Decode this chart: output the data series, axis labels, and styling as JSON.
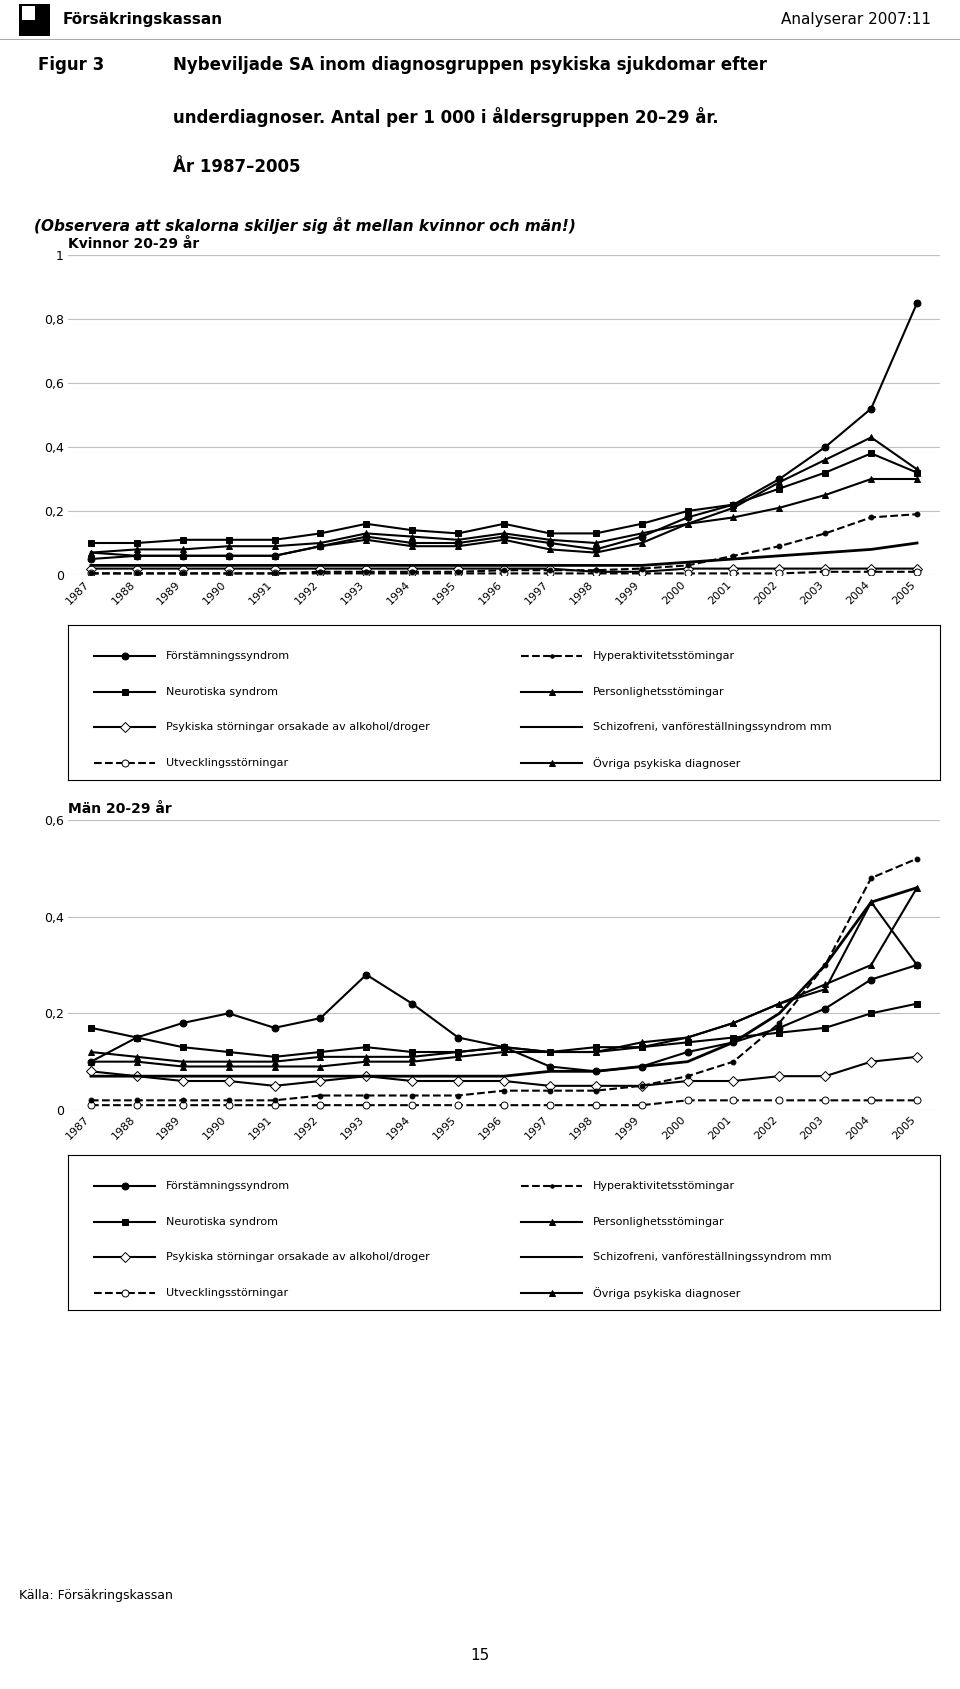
{
  "years": [
    1987,
    1988,
    1989,
    1990,
    1991,
    1992,
    1993,
    1994,
    1995,
    1996,
    1997,
    1998,
    1999,
    2000,
    2001,
    2002,
    2003,
    2004,
    2005
  ],
  "kvinnor": {
    "forstamningssyndrom": [
      0.05,
      0.06,
      0.06,
      0.06,
      0.06,
      0.09,
      0.12,
      0.1,
      0.1,
      0.12,
      0.1,
      0.08,
      0.12,
      0.18,
      0.22,
      0.3,
      0.4,
      0.52,
      0.85
    ],
    "neurotiska": [
      0.1,
      0.1,
      0.11,
      0.11,
      0.11,
      0.13,
      0.16,
      0.14,
      0.13,
      0.16,
      0.13,
      0.13,
      0.16,
      0.2,
      0.22,
      0.27,
      0.32,
      0.38,
      0.32
    ],
    "psykiska_alkohol": [
      0.02,
      0.02,
      0.02,
      0.02,
      0.02,
      0.02,
      0.02,
      0.02,
      0.02,
      0.02,
      0.02,
      0.01,
      0.01,
      0.02,
      0.02,
      0.02,
      0.02,
      0.02,
      0.02
    ],
    "utvecklingsstorningar": [
      0.005,
      0.005,
      0.005,
      0.005,
      0.005,
      0.005,
      0.005,
      0.005,
      0.005,
      0.005,
      0.005,
      0.005,
      0.005,
      0.005,
      0.005,
      0.005,
      0.01,
      0.01,
      0.01
    ],
    "hyperaktivitet": [
      0.005,
      0.005,
      0.005,
      0.005,
      0.005,
      0.01,
      0.01,
      0.01,
      0.01,
      0.015,
      0.015,
      0.015,
      0.02,
      0.03,
      0.06,
      0.09,
      0.13,
      0.18,
      0.19
    ],
    "personlighet": [
      0.07,
      0.08,
      0.08,
      0.09,
      0.09,
      0.1,
      0.13,
      0.12,
      0.11,
      0.13,
      0.11,
      0.1,
      0.13,
      0.16,
      0.18,
      0.21,
      0.25,
      0.3,
      0.3
    ],
    "schizofreni": [
      0.03,
      0.03,
      0.03,
      0.03,
      0.03,
      0.03,
      0.03,
      0.03,
      0.03,
      0.03,
      0.03,
      0.03,
      0.03,
      0.04,
      0.05,
      0.06,
      0.07,
      0.08,
      0.1
    ],
    "ovriga": [
      0.07,
      0.06,
      0.06,
      0.06,
      0.06,
      0.09,
      0.11,
      0.09,
      0.09,
      0.11,
      0.08,
      0.07,
      0.1,
      0.16,
      0.21,
      0.29,
      0.36,
      0.43,
      0.33
    ]
  },
  "man": {
    "forstamningssyndrom": [
      0.1,
      0.15,
      0.18,
      0.2,
      0.17,
      0.19,
      0.28,
      0.22,
      0.15,
      0.13,
      0.09,
      0.08,
      0.09,
      0.12,
      0.14,
      0.17,
      0.21,
      0.27,
      0.3
    ],
    "neurotiska": [
      0.17,
      0.15,
      0.13,
      0.12,
      0.11,
      0.12,
      0.13,
      0.12,
      0.12,
      0.13,
      0.12,
      0.13,
      0.13,
      0.14,
      0.15,
      0.16,
      0.17,
      0.2,
      0.22
    ],
    "psykiska_alkohol": [
      0.08,
      0.07,
      0.06,
      0.06,
      0.05,
      0.06,
      0.07,
      0.06,
      0.06,
      0.06,
      0.05,
      0.05,
      0.05,
      0.06,
      0.06,
      0.07,
      0.07,
      0.1,
      0.11
    ],
    "utvecklingsstorningar": [
      0.01,
      0.01,
      0.01,
      0.01,
      0.01,
      0.01,
      0.01,
      0.01,
      0.01,
      0.01,
      0.01,
      0.01,
      0.01,
      0.02,
      0.02,
      0.02,
      0.02,
      0.02,
      0.02
    ],
    "hyperaktivitet": [
      0.02,
      0.02,
      0.02,
      0.02,
      0.02,
      0.03,
      0.03,
      0.03,
      0.03,
      0.04,
      0.04,
      0.04,
      0.05,
      0.07,
      0.1,
      0.18,
      0.3,
      0.48,
      0.52
    ],
    "personlighet": [
      0.1,
      0.1,
      0.09,
      0.09,
      0.09,
      0.09,
      0.1,
      0.1,
      0.11,
      0.12,
      0.12,
      0.12,
      0.14,
      0.15,
      0.18,
      0.22,
      0.26,
      0.3,
      0.46
    ],
    "schizofreni": [
      0.07,
      0.07,
      0.07,
      0.07,
      0.07,
      0.07,
      0.07,
      0.07,
      0.07,
      0.07,
      0.08,
      0.08,
      0.09,
      0.1,
      0.14,
      0.2,
      0.3,
      0.43,
      0.46
    ],
    "ovriga": [
      0.12,
      0.11,
      0.1,
      0.1,
      0.1,
      0.11,
      0.11,
      0.11,
      0.12,
      0.13,
      0.12,
      0.12,
      0.13,
      0.15,
      0.18,
      0.22,
      0.25,
      0.43,
      0.3
    ]
  },
  "header_text": "Analyserar 2007:11",
  "logo_text": "Försäkringskassan",
  "title_label": "Figur 3",
  "title_text1": "Nybeviljade SA inom diagnosgruppen psykiska sjukdomar efter",
  "title_text2": "underdiagnoser. Antal per 1 000 i åldersgruppen 20–29 år.",
  "title_text3": "År 1987–2005",
  "obs_text": "(Observera att skalorna skiljer sig åt mellan kvinnor och män!)",
  "kvinnor_title": "Kvinnor 20-29 år",
  "man_title": "Män 20-29 år",
  "kalla": "Källa: Försäkringskassan",
  "page_number": "15",
  "kvinnor_ylim": [
    0,
    1.0
  ],
  "kvinnor_yticks": [
    0,
    0.2,
    0.4,
    0.6,
    0.8,
    1.0
  ],
  "man_ylim": [
    0,
    0.6
  ],
  "man_yticks": [
    0,
    0.2,
    0.4,
    0.6
  ]
}
